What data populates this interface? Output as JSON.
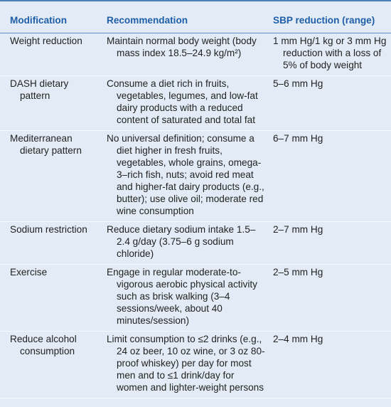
{
  "table": {
    "header": [
      "Modification",
      "Recommendation",
      "SBP reduction (range)"
    ],
    "rows": [
      [
        "Weight reduction",
        "Maintain normal body weight (body mass index 18.5–24.9 kg/m²)",
        "1 mm Hg/1 kg or 3 mm Hg reduction with a loss of 5% of body weight"
      ],
      [
        "DASH dietary pattern",
        "Consume a diet rich in fruits, vegetables, legumes, and low-fat dairy products with a reduced content of saturated and total fat",
        "5–6 mm Hg"
      ],
      [
        "Mediterranean dietary pattern",
        "No universal definition; consume a diet higher in fresh fruits, vegetables, whole grains, omega-3–rich fish, nuts; avoid red meat and higher-fat dairy products (e.g., butter); use olive oil; moderate red wine consumption",
        "6–7 mm Hg"
      ],
      [
        "Sodium restriction",
        "Reduce dietary sodium intake 1.5–2.4 g/day (3.75–6 g sodium chloride)",
        "2–7 mm Hg"
      ],
      [
        "Exercise",
        "Engage in regular moderate-to-vigorous aerobic physical activity such as brisk walking (3–4 sessions/week, about 40 minutes/session)",
        "2–5 mm Hg"
      ],
      [
        "Reduce alcohol consumption",
        "Limit consumption to ≤2 drinks (e.g., 24 oz beer, 10 oz wine, or 3 oz 80-proof whiskey) per day for most men and to ≤1 drink/day for women and lighter-weight persons",
        "2–4 mm Hg"
      ]
    ]
  }
}
